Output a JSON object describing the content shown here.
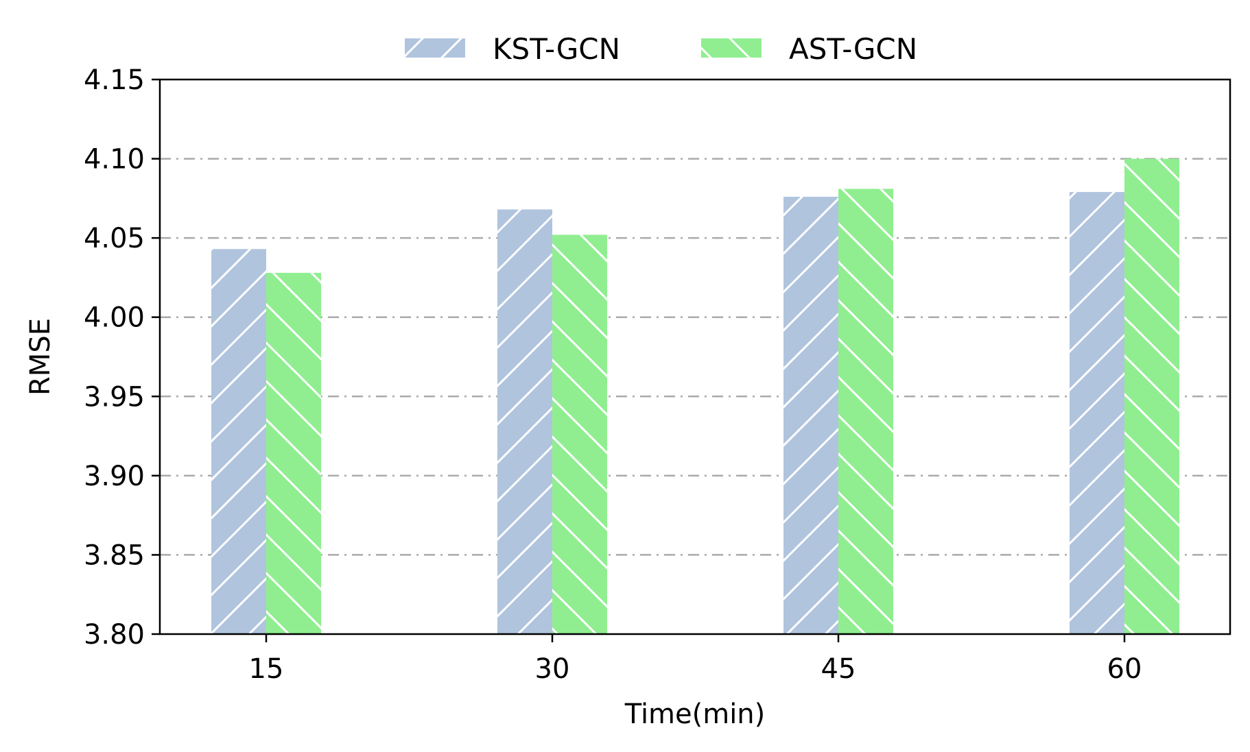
{
  "chart_data": {
    "type": "bar",
    "categories": [
      "15",
      "30",
      "45",
      "60"
    ],
    "series": [
      {
        "name": "KST-GCN",
        "values": [
          4.043,
          4.068,
          4.076,
          4.079
        ],
        "color": "#b0c4de",
        "hatch": "forward-diagonal"
      },
      {
        "name": "AST-GCN",
        "values": [
          4.028,
          4.052,
          4.081,
          4.1
        ],
        "color": "#90ee90",
        "hatch": "back-diagonal"
      }
    ],
    "xlabel": "Time(min)",
    "ylabel": "RMSE",
    "ylim": [
      3.8,
      4.15
    ],
    "yticks": [
      "3.80",
      "3.85",
      "3.90",
      "3.95",
      "4.00",
      "4.05",
      "4.10",
      "4.15"
    ],
    "grid": {
      "axis": "y",
      "style": "dash-dot",
      "color": "#aaaaaa"
    },
    "legend": {
      "placement": "top-center",
      "columns": 2
    }
  }
}
